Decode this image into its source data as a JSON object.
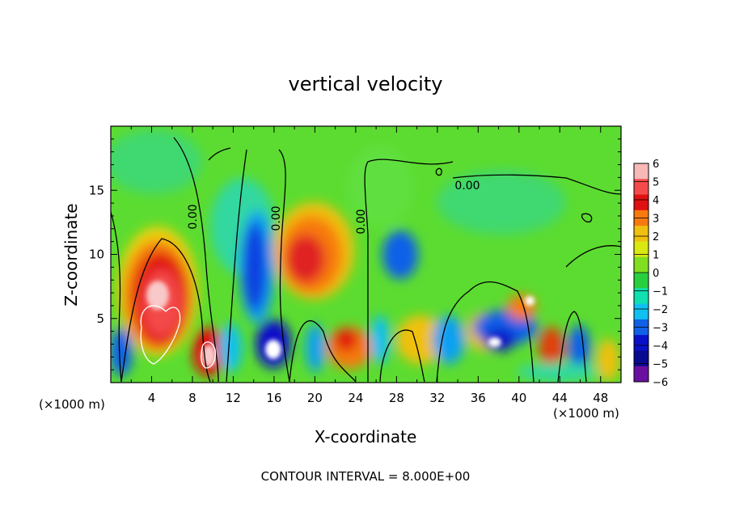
{
  "chart_data": {
    "type": "heatmap",
    "title": "vertical velocity",
    "xlabel": "X-coordinate",
    "ylabel": "Z-coordinate",
    "x_unit_left": "(×1000 m)",
    "x_unit_right": "(×1000 m)",
    "footer": "CONTOUR INTERVAL = 8.000E+00",
    "xlim": [
      0,
      50
    ],
    "ylim": [
      0,
      20
    ],
    "x_ticks": [
      4,
      8,
      12,
      16,
      20,
      24,
      28,
      32,
      36,
      40,
      44,
      48
    ],
    "y_ticks": [
      5,
      10,
      15
    ],
    "contour_label": "0.00",
    "colorbar": {
      "range": [
        -6,
        6
      ],
      "tick_labels": [
        "6",
        "5",
        "4",
        "3",
        "2",
        "1",
        "0",
        "−1",
        "−2",
        "−3",
        "−4",
        "−5",
        "−6"
      ],
      "colors": [
        "#f9b8b8",
        "#f44a4a",
        "#e01010",
        "#f77a10",
        "#f0c010",
        "#d8e810",
        "#80e020",
        "#28d040",
        "#10e0b0",
        "#10c0f0",
        "#1060e8",
        "#0a10c8",
        "#0a0a90",
        "#6a10a0"
      ]
    },
    "features": [
      {
        "kind": "updraft",
        "x": 5.5,
        "z": 6.5,
        "peak": 6
      },
      {
        "kind": "updraft",
        "x": 9.5,
        "z": 2.5,
        "peak": 6
      },
      {
        "kind": "updraft",
        "x": 19.0,
        "z": 9.5,
        "peak": 4
      },
      {
        "kind": "downdraft",
        "x": 14.0,
        "z": 8.5,
        "peak": -5
      },
      {
        "kind": "downdraft",
        "x": 16.0,
        "z": 3.0,
        "peak": -6
      },
      {
        "kind": "updraft",
        "x": 23.5,
        "z": 3.0,
        "peak": 4
      },
      {
        "kind": "downdraft",
        "x": 28.0,
        "z": 10.0,
        "peak": -4
      },
      {
        "kind": "downdraft",
        "x": 38.5,
        "z": 4.0,
        "peak": -5
      },
      {
        "kind": "updraft",
        "x": 43.0,
        "z": 2.5,
        "peak": 4
      }
    ]
  }
}
